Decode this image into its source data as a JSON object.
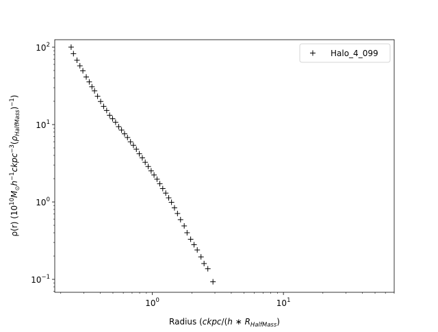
{
  "chart_data": {
    "type": "scatter",
    "xscale": "log",
    "yscale": "log",
    "xlim": [
      0.18,
      70
    ],
    "ylim": [
      0.068,
      125
    ],
    "xlabel": "Radius (ckpc/(h * R_HalfMass)",
    "ylabel": "ρ(r) (10^10 M_⊙ h^−1 ckpc^−3 (ρ_HalfMass)^−1)",
    "x_ticks": [
      {
        "value": 1,
        "base": "10",
        "exp": "0"
      },
      {
        "value": 10,
        "base": "10",
        "exp": "1"
      }
    ],
    "y_ticks": [
      {
        "value": 0.1,
        "base": "10",
        "exp": "−1"
      },
      {
        "value": 1,
        "base": "10",
        "exp": "0"
      },
      {
        "value": 10,
        "base": "10",
        "exp": "1"
      },
      {
        "value": 100,
        "base": "10",
        "exp": "2"
      }
    ],
    "legend_position": "top-right",
    "series": [
      {
        "name": "Halo_4_099",
        "marker": "+",
        "color": "#000000",
        "points": [
          [
            0.24,
            100.2
          ],
          [
            0.25,
            82.5
          ],
          [
            0.266,
            67.9
          ],
          [
            0.28,
            57.5
          ],
          [
            0.295,
            49.6
          ],
          [
            0.313,
            41.3
          ],
          [
            0.33,
            35.6
          ],
          [
            0.346,
            30.8
          ],
          [
            0.362,
            27.3
          ],
          [
            0.382,
            23.2
          ],
          [
            0.403,
            19.9
          ],
          [
            0.425,
            17.2
          ],
          [
            0.448,
            15.2
          ],
          [
            0.472,
            13.2
          ],
          [
            0.497,
            11.9
          ],
          [
            0.524,
            10.7
          ],
          [
            0.553,
            9.4
          ],
          [
            0.582,
            8.5
          ],
          [
            0.613,
            7.6
          ],
          [
            0.646,
            6.8
          ],
          [
            0.681,
            6.0
          ],
          [
            0.717,
            5.4
          ],
          [
            0.755,
            4.8
          ],
          [
            0.795,
            4.2
          ],
          [
            0.838,
            3.71
          ],
          [
            0.882,
            3.25
          ],
          [
            0.93,
            2.87
          ],
          [
            0.979,
            2.52
          ],
          [
            1.03,
            2.23
          ],
          [
            1.085,
            1.97
          ],
          [
            1.14,
            1.72
          ],
          [
            1.2,
            1.49
          ],
          [
            1.265,
            1.3
          ],
          [
            1.332,
            1.13
          ],
          [
            1.4,
            0.99
          ],
          [
            1.475,
            0.84
          ],
          [
            1.555,
            0.71
          ],
          [
            1.64,
            0.59
          ],
          [
            1.75,
            0.49
          ],
          [
            1.84,
            0.4
          ],
          [
            1.96,
            0.33
          ],
          [
            2.08,
            0.28
          ],
          [
            2.2,
            0.24
          ],
          [
            2.35,
            0.195
          ],
          [
            2.48,
            0.16
          ],
          [
            2.65,
            0.137
          ],
          [
            2.9,
            0.093
          ]
        ]
      }
    ]
  }
}
